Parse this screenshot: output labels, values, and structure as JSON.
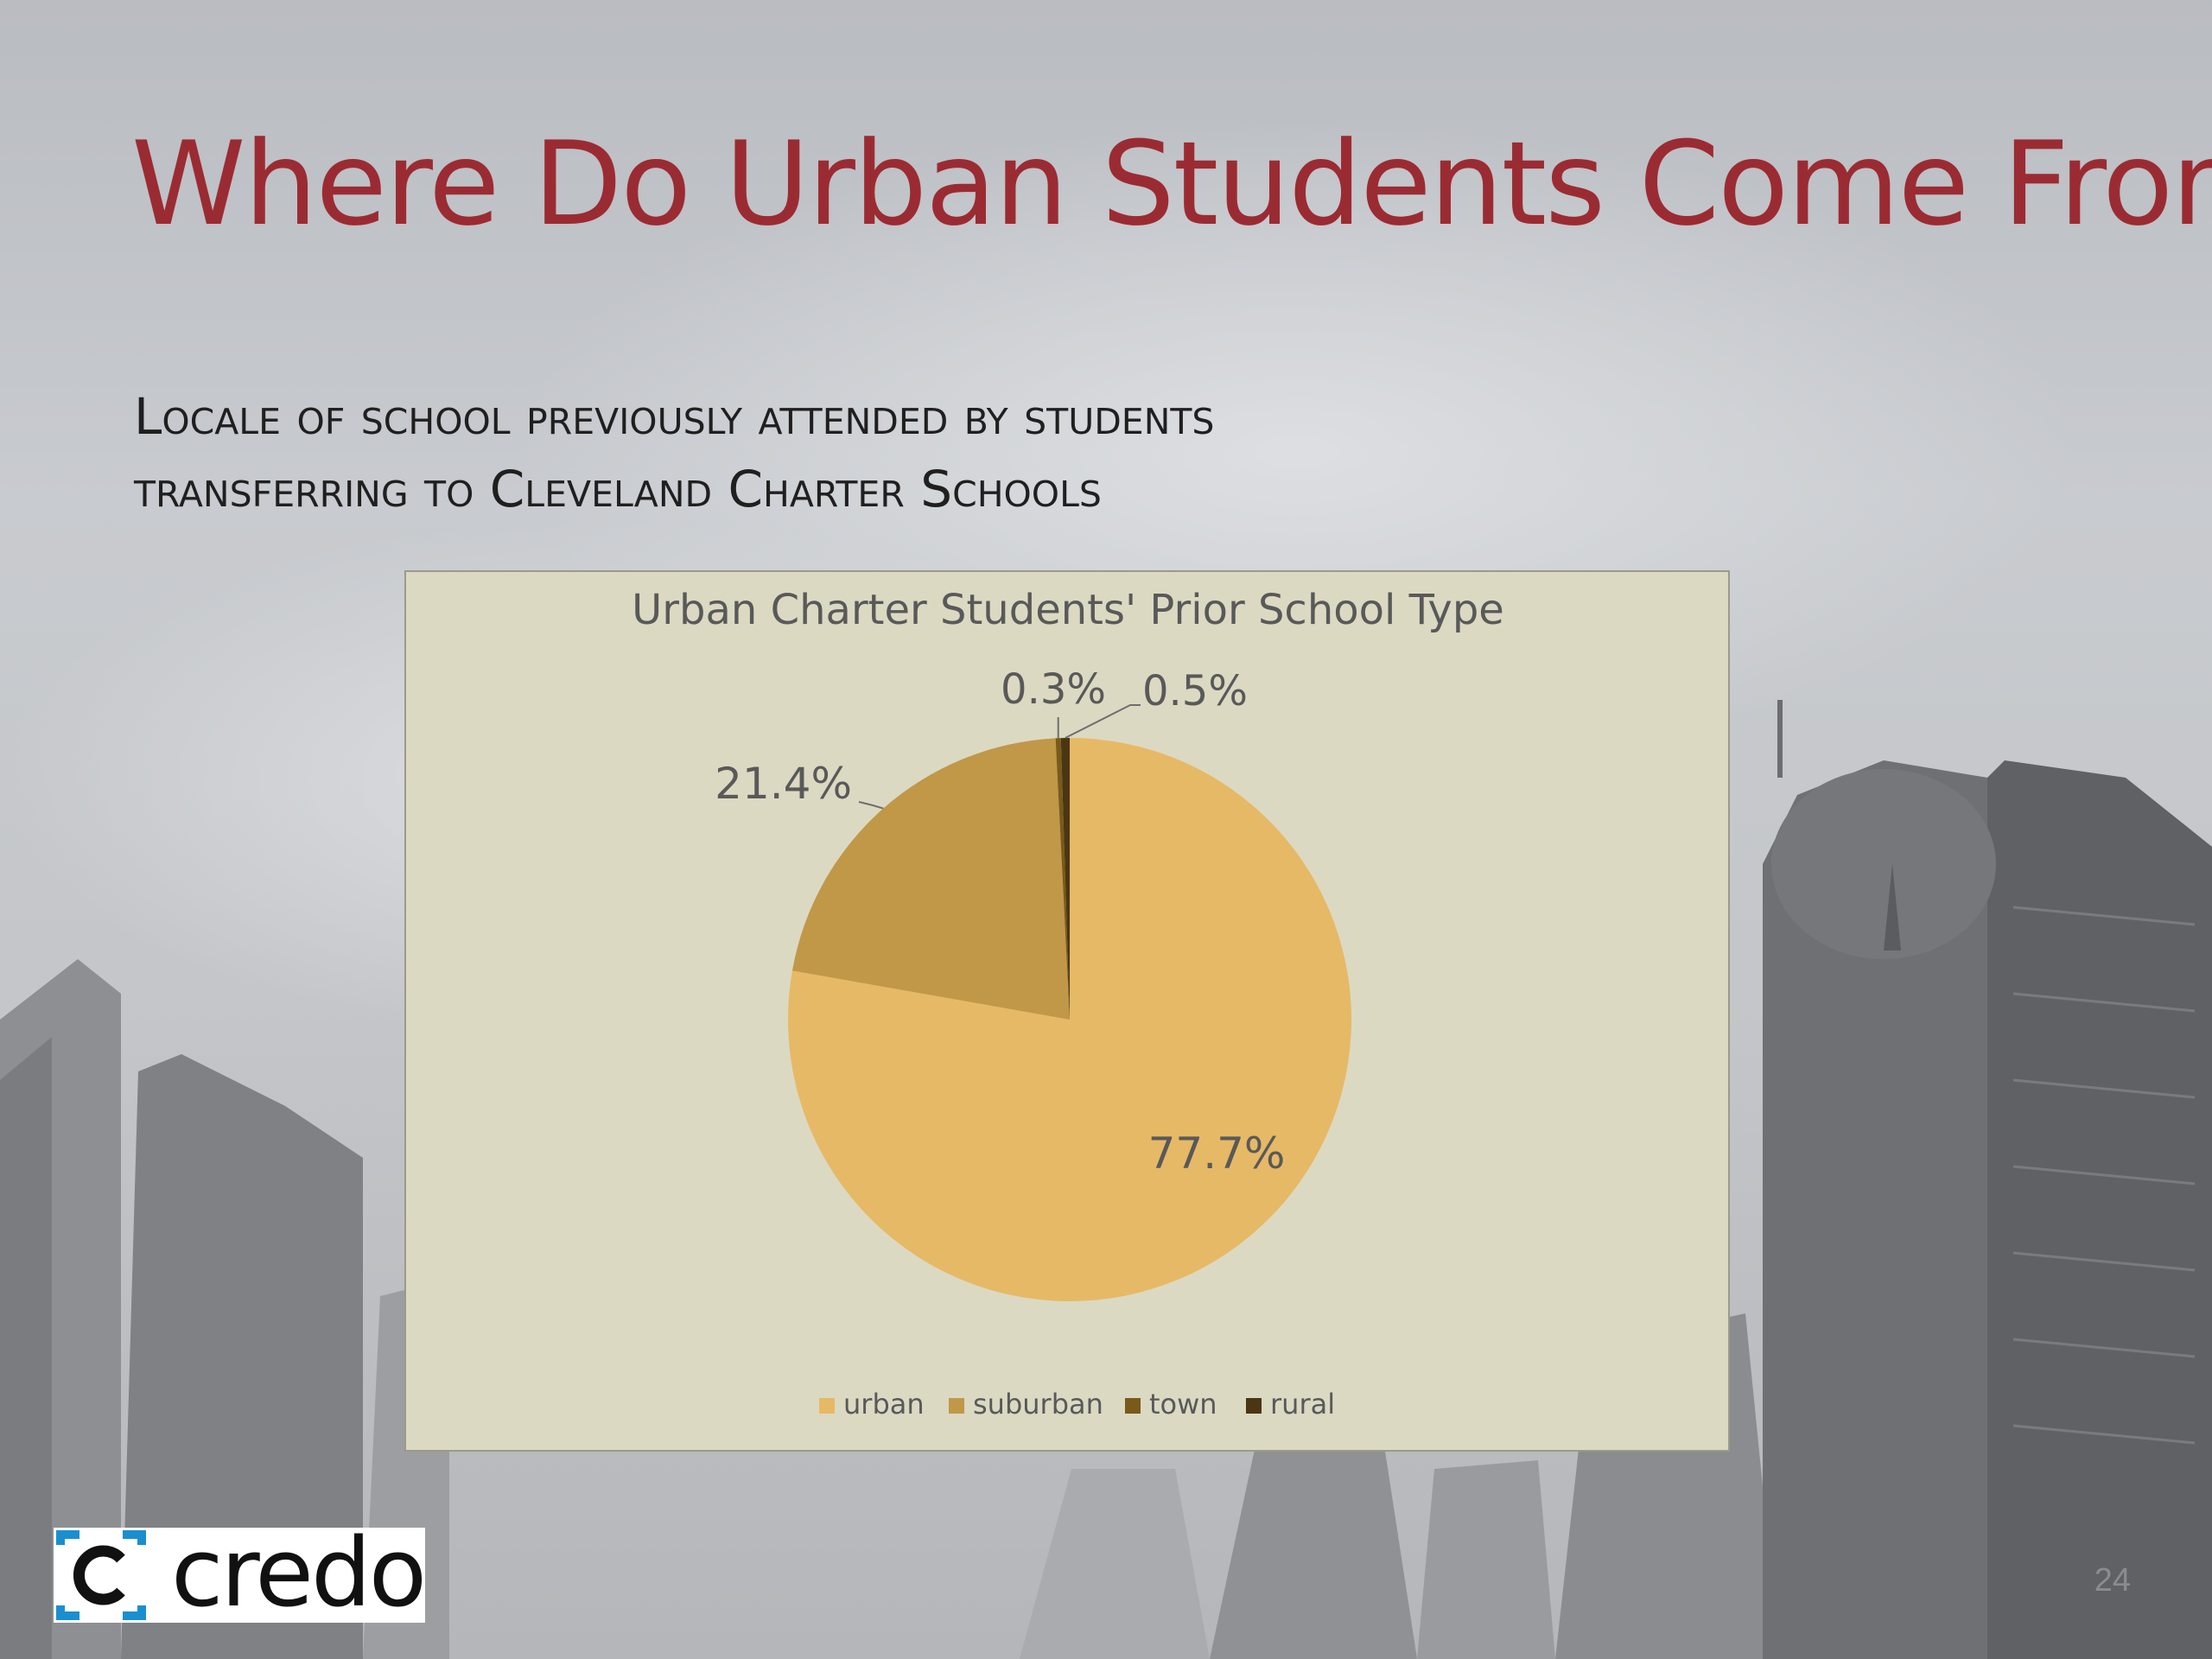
{
  "slide": {
    "title": "Where Do Urban Students Come From?",
    "subtitle_line1": "Locale of school previously attended by students",
    "subtitle_line2": "transferring to Cleveland Charter Schools",
    "page_number": "24",
    "logo_text": "credo",
    "logo_icon": "c-bracket-logo-icon"
  },
  "chart_data": {
    "type": "pie",
    "title": "Urban Charter Students' Prior School Type",
    "categories": [
      "urban",
      "suburban",
      "town",
      "rural"
    ],
    "values": [
      77.7,
      21.4,
      0.3,
      0.5
    ],
    "labels": [
      "77.7%",
      "21.4%",
      "0.3%",
      "0.5%"
    ],
    "colors": [
      "#e6b966",
      "#c09848",
      "#7a5a1a",
      "#4b3614"
    ],
    "legend_position": "bottom"
  }
}
